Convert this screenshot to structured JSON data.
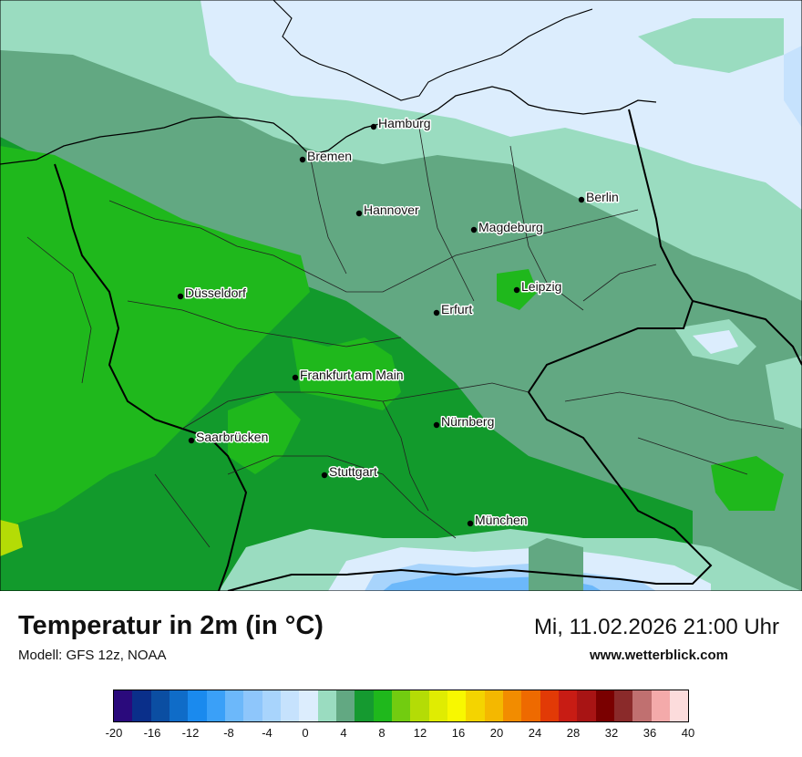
{
  "title": "Temperatur in 2m (in °C)",
  "model": "Modell: GFS 12z, NOAA",
  "datetime": "Mi, 11.02.2026 21:00 Uhr",
  "website": "www.wetterblick.com",
  "legend": {
    "ticks": [
      "-20",
      "-16",
      "-12",
      "-8",
      "-4",
      "0",
      "4",
      "8",
      "12",
      "16",
      "20",
      "24",
      "28",
      "32",
      "36",
      "40"
    ],
    "colors": [
      "#2a0a7c",
      "#0a2f8a",
      "#0b4ea2",
      "#0f6cc8",
      "#1a8aee",
      "#3aa0f8",
      "#6cb8fa",
      "#8ec6fb",
      "#a8d4fc",
      "#c6e2fd",
      "#dcedfd",
      "#9adcc0",
      "#62a882",
      "#159a30",
      "#1fb81c",
      "#72cc10",
      "#b4dc06",
      "#e0ec02",
      "#f8f800",
      "#f4d400",
      "#f4b800",
      "#f28c00",
      "#ee6a00",
      "#e23a06",
      "#c81c14",
      "#a81414",
      "#7a0000",
      "#8a2a2a",
      "#c07070",
      "#f4aaaa",
      "#fcdcdc"
    ]
  },
  "cities": [
    {
      "name": "Hamburg"
    },
    {
      "name": "Bremen"
    },
    {
      "name": "Berlin"
    },
    {
      "name": "Hannover"
    },
    {
      "name": "Magdeburg"
    },
    {
      "name": "Leipzig"
    },
    {
      "name": "Düsseldorf"
    },
    {
      "name": "Erfurt"
    },
    {
      "name": "Frankfurt am Main"
    },
    {
      "name": "Nürnberg"
    },
    {
      "name": "Saarbrücken"
    },
    {
      "name": "Stuttgart"
    },
    {
      "name": "München"
    }
  ]
}
